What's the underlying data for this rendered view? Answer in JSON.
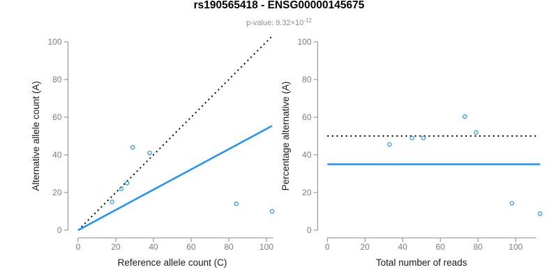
{
  "figure": {
    "title": "rs190565418 - ENSG00000145675",
    "subtitle_prefix": "p-value: 9.32×10",
    "subtitle_exponent": "-12"
  },
  "colors": {
    "background": "#ffffff",
    "point_blue": "#1E90FF",
    "fit_line_blue": "#1E90FF",
    "reference_line_black": "#000000",
    "axis_gray": "#888888",
    "tick_label_gray": "#7d7d7d",
    "axis_title_dark": "#1a1a1a",
    "title_black": "#000000",
    "subtitle_gray": "#8e8e8e"
  },
  "chart_data": [
    {
      "name": "allele-count-scatter",
      "type": "scatter",
      "title": "",
      "xlabel": "Reference allele count (C)",
      "ylabel": "Alternative allele count (A)",
      "xlim": [
        0,
        104
      ],
      "ylim": [
        0,
        104
      ],
      "xticks": [
        0,
        20,
        40,
        60,
        80,
        100
      ],
      "yticks": [
        0,
        20,
        40,
        60,
        80,
        100
      ],
      "grid": false,
      "legend": "none",
      "points": [
        {
          "x": 18,
          "y": 15
        },
        {
          "x": 23,
          "y": 22
        },
        {
          "x": 26,
          "y": 25
        },
        {
          "x": 29,
          "y": 44
        },
        {
          "x": 38,
          "y": 41
        },
        {
          "x": 84,
          "y": 14
        },
        {
          "x": 103,
          "y": 10
        }
      ],
      "lines": [
        {
          "name": "identity-line",
          "style": "dotted",
          "color": "#000000",
          "width": 2,
          "from": {
            "x": 0,
            "y": 0
          },
          "to": {
            "x": 103,
            "y": 103
          }
        },
        {
          "name": "fitted-ratio-line",
          "style": "solid",
          "color": "#1E90FF",
          "width": 2.5,
          "from": {
            "x": 0,
            "y": 0
          },
          "to": {
            "x": 103,
            "y": 55.4
          }
        }
      ]
    },
    {
      "name": "percentage-vs-reads-scatter",
      "type": "scatter",
      "title": "",
      "xlabel": "Total number of reads",
      "ylabel": "Percentage alternative (A)",
      "xlim": [
        0,
        113
      ],
      "ylim": [
        0,
        100
      ],
      "xticks": [
        0,
        20,
        40,
        60,
        80,
        100
      ],
      "yticks": [
        0,
        20,
        40,
        60,
        80,
        100
      ],
      "grid": false,
      "legend": "none",
      "points": [
        {
          "x": 33,
          "y": 45.5
        },
        {
          "x": 45,
          "y": 48.9
        },
        {
          "x": 51,
          "y": 49.0
        },
        {
          "x": 73,
          "y": 60.3
        },
        {
          "x": 79,
          "y": 51.9
        },
        {
          "x": 98,
          "y": 14.3
        },
        {
          "x": 113,
          "y": 8.8
        }
      ],
      "lines": [
        {
          "name": "expected-50pct-line",
          "style": "dotted",
          "color": "#000000",
          "width": 2,
          "from": {
            "x": 0,
            "y": 50
          },
          "to": {
            "x": 111,
            "y": 50
          }
        },
        {
          "name": "estimated-35pct-line",
          "style": "solid",
          "color": "#1E90FF",
          "width": 2.5,
          "from": {
            "x": 0,
            "y": 35
          },
          "to": {
            "x": 113,
            "y": 35
          }
        }
      ]
    }
  ]
}
